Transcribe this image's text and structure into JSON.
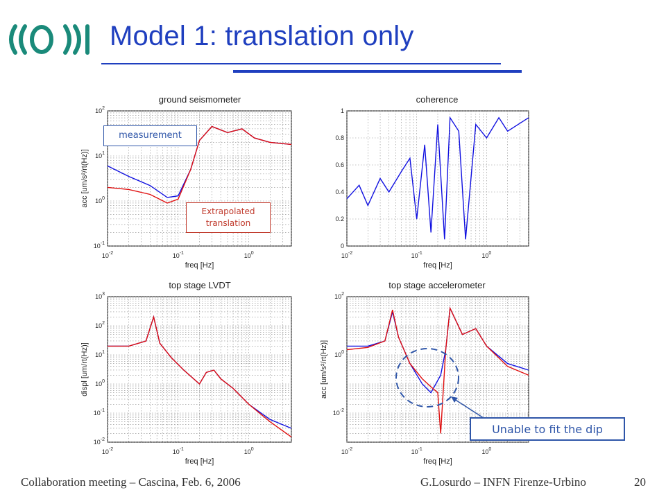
{
  "slide": {
    "title": "Model 1: translation only",
    "footer_left": "Collaboration meeting – Cascina, Feb. 6, 2006",
    "footer_right": "G.Losurdo – INFN Firenze-Urbino",
    "page_number": "20"
  },
  "colors": {
    "title": "#1f3fbf",
    "measurement": "#1010e0",
    "extrapolated": "#e01010",
    "callout": "#2e55a8"
  },
  "callouts": {
    "measurement": "measurement",
    "extrapolated_line1": "Extrapolated",
    "extrapolated_line2": "translation",
    "unable": "Unable to fit the dip"
  },
  "chart_data": [
    {
      "type": "line",
      "title": "ground seismometer",
      "xlabel": "freq [Hz]",
      "ylabel": "acc [um/s²/rt(Hz)]",
      "xscale": "log",
      "yscale": "log",
      "xlim": [
        0.01,
        4
      ],
      "ylim": [
        0.1,
        100
      ],
      "xticks": [
        "10-2",
        "10-1",
        "100"
      ],
      "yticks": [
        "10-1",
        "100",
        "101",
        "102"
      ],
      "grid": true,
      "series": [
        {
          "x": [
            0.01,
            0.02,
            0.04,
            0.07,
            0.1,
            0.15,
            0.2,
            0.3,
            0.5,
            0.8,
            1.2,
            2,
            4
          ],
          "y": [
            6,
            3.5,
            2.2,
            1.2,
            1.3,
            5,
            22,
            45,
            33,
            40,
            25,
            20,
            18
          ]
        },
        {
          "x": [
            0.01,
            0.02,
            0.04,
            0.07,
            0.1,
            0.15,
            0.2,
            0.3,
            0.5,
            0.8,
            1.2,
            2,
            4
          ],
          "y": [
            2,
            1.8,
            1.4,
            0.9,
            1.1,
            5,
            22,
            45,
            33,
            40,
            25,
            20,
            18
          ]
        }
      ]
    },
    {
      "type": "line",
      "title": "coherence",
      "xlabel": "freq [Hz]",
      "ylabel": "",
      "xscale": "log",
      "yscale": "linear",
      "xlim": [
        0.01,
        4
      ],
      "ylim": [
        0,
        1
      ],
      "xticks": [
        "10-2",
        "10-1",
        "100"
      ],
      "yticks": [
        "0",
        "0.2",
        "0.4",
        "0.6",
        "0.8",
        "1"
      ],
      "grid": true,
      "series": [
        {
          "x": [
            0.01,
            0.015,
            0.02,
            0.03,
            0.04,
            0.06,
            0.08,
            0.1,
            0.13,
            0.16,
            0.2,
            0.25,
            0.3,
            0.4,
            0.5,
            0.7,
            1,
            1.5,
            2,
            4
          ],
          "y": [
            0.35,
            0.45,
            0.3,
            0.5,
            0.4,
            0.55,
            0.65,
            0.2,
            0.75,
            0.1,
            0.9,
            0.05,
            0.95,
            0.85,
            0.05,
            0.9,
            0.8,
            0.95,
            0.85,
            0.95
          ]
        }
      ]
    },
    {
      "type": "line",
      "title": "top stage LVDT",
      "xlabel": "freq [Hz]",
      "ylabel": "displ [um/rt(Hz)]",
      "xscale": "log",
      "yscale": "log",
      "xlim": [
        0.01,
        4
      ],
      "ylim": [
        0.01,
        1000
      ],
      "xticks": [
        "10-2",
        "10-1",
        "100"
      ],
      "yticks": [
        "10-2",
        "10-1",
        "100",
        "101",
        "102",
        "103"
      ],
      "grid": true,
      "series": [
        {
          "x": [
            0.01,
            0.02,
            0.035,
            0.045,
            0.055,
            0.08,
            0.12,
            0.2,
            0.25,
            0.32,
            0.4,
            0.6,
            1,
            2,
            4
          ],
          "y": [
            20,
            20,
            30,
            200,
            25,
            8,
            3,
            1,
            2.5,
            3,
            1.5,
            0.7,
            0.2,
            0.06,
            0.03
          ]
        },
        {
          "x": [
            0.01,
            0.02,
            0.035,
            0.045,
            0.055,
            0.08,
            0.12,
            0.2,
            0.25,
            0.32,
            0.4,
            0.6,
            1,
            2,
            4
          ],
          "y": [
            20,
            20,
            30,
            200,
            25,
            8,
            3,
            1,
            2.5,
            3,
            1.5,
            0.7,
            0.2,
            0.05,
            0.015
          ]
        }
      ]
    },
    {
      "type": "line",
      "title": "top stage accelerometer",
      "xlabel": "freq [Hz]",
      "ylabel": "acc [um/s²/rt(Hz)]",
      "xscale": "log",
      "yscale": "log",
      "xlim": [
        0.01,
        4
      ],
      "ylim": [
        0.001,
        100
      ],
      "xticks": [
        "10-2",
        "10-1",
        "100"
      ],
      "yticks": [
        "10-2",
        "100",
        "102"
      ],
      "grid": true,
      "series": [
        {
          "x": [
            0.01,
            0.02,
            0.035,
            0.045,
            0.055,
            0.08,
            0.12,
            0.16,
            0.22,
            0.26,
            0.3,
            0.45,
            0.7,
            1,
            2,
            4
          ],
          "y": [
            2,
            2,
            3,
            30,
            4,
            0.5,
            0.1,
            0.05,
            0.2,
            1.5,
            40,
            5,
            8,
            2,
            0.5,
            0.3
          ]
        },
        {
          "x": [
            0.01,
            0.02,
            0.035,
            0.045,
            0.055,
            0.08,
            0.12,
            0.16,
            0.2,
            0.22,
            0.26,
            0.3,
            0.45,
            0.7,
            1,
            2,
            4
          ],
          "y": [
            1.5,
            1.8,
            3,
            35,
            4,
            0.5,
            0.15,
            0.08,
            0.05,
            0.002,
            1.5,
            40,
            5,
            8,
            2,
            0.4,
            0.2
          ]
        }
      ]
    }
  ]
}
